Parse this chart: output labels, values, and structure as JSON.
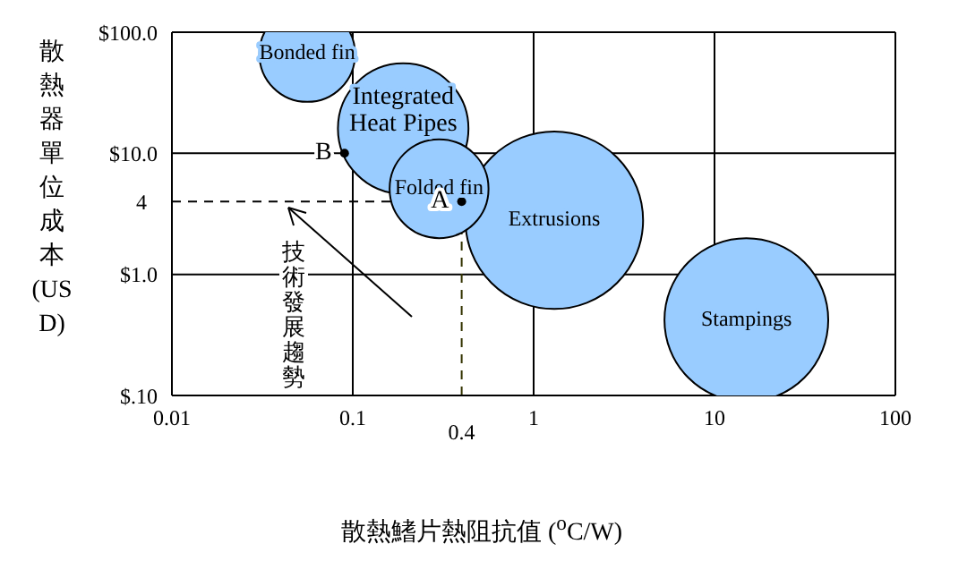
{
  "chart_data": {
    "type": "bubble",
    "xlabel": "散熱鰭片熱阻抗值 ($^{o}$C/W)",
    "ylabel": "散熱器單位成本 (USD)",
    "log": "xy",
    "grid": true,
    "xlim": [
      0.01,
      100
    ],
    "xticks": [
      0.01,
      0.1,
      1,
      10,
      100
    ],
    "ylim": [
      0.1,
      100
    ],
    "yticks": [
      {
        "value": 0.1,
        "label": "$.10"
      },
      {
        "value": 1,
        "label": "$1.0"
      },
      {
        "value": 10,
        "label": "$10.0"
      },
      {
        "value": 100,
        "label": "$100.0"
      }
    ],
    "series": [
      {
        "name": "Bonded fin",
        "color": "#99ccff",
        "x": [
          0.056
        ],
        "values": [
          66
        ],
        "sizes": [
          0.29
        ]
      },
      {
        "name": "Integrated Heat Pipes",
        "color": "#99ccff",
        "x": [
          0.19
        ],
        "values": [
          16
        ],
        "sizes": [
          0.54
        ]
      },
      {
        "name": "Extrusions",
        "color": "#99ccff",
        "x": [
          1.3
        ],
        "values": [
          2.8
        ],
        "sizes": [
          1
        ]
      },
      {
        "name": "Folded fin",
        "color": "#99ccff",
        "x": [
          0.3
        ],
        "values": [
          5.1
        ],
        "sizes": [
          0.31
        ]
      },
      {
        "name": "Stampings",
        "color": "#99ccff",
        "x": [
          15
        ],
        "values": [
          0.42
        ],
        "sizes": [
          0.85
        ]
      },
      {
        "type": "scatter",
        "color": "#000000",
        "marker": "circle",
        "x": [
          0.4,
          0.09
        ],
        "values": [
          4,
          10
        ],
        "value_labels": [
          "A",
          "B"
        ]
      }
    ],
    "ref_lines": [
      {
        "axis": "x",
        "value": 0.4,
        "label": "0.4",
        "color": "#333300",
        "line_style": "dashed"
      },
      {
        "axis": "y",
        "value": 4,
        "label": "4",
        "color": "#000000",
        "line_style": "dashed"
      }
    ],
    "annotations": [
      "技術發展趨勢"
    ]
  }
}
